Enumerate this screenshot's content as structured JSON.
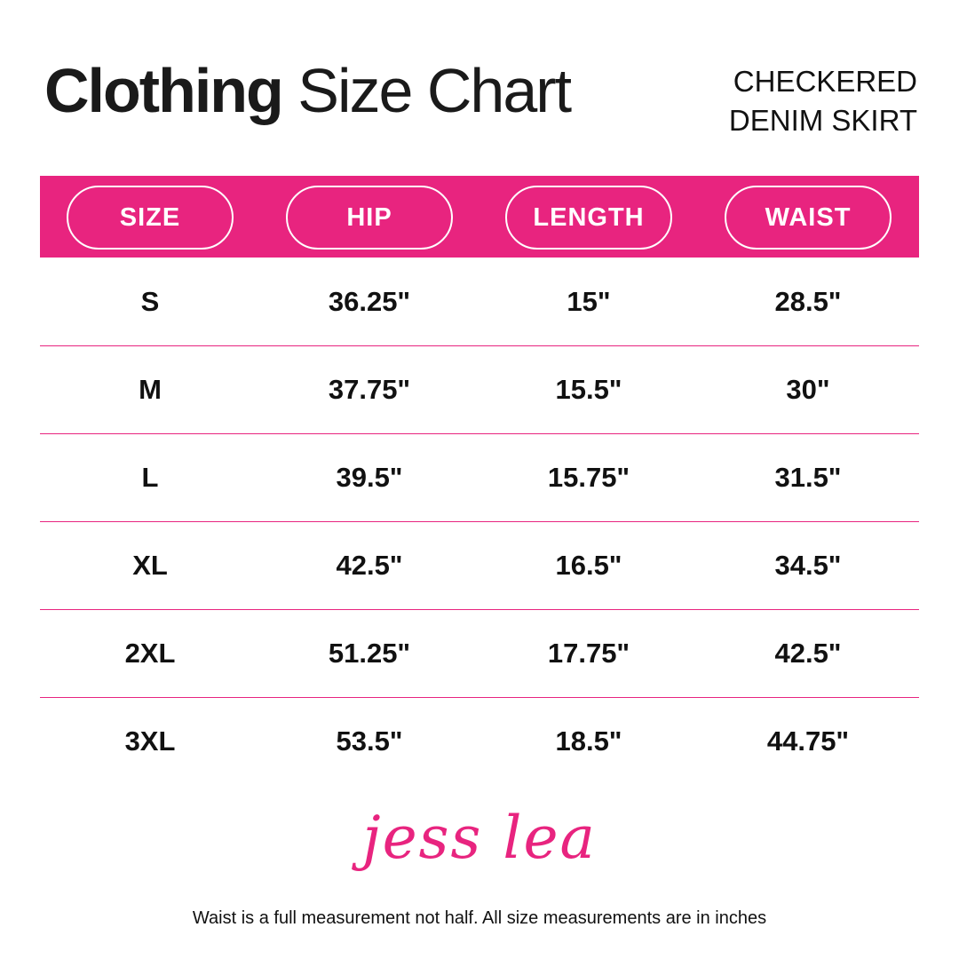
{
  "header": {
    "title_bold": "Clothing",
    "title_rest": "Size Chart",
    "subtitle": [
      "CHECKERED",
      "DENIM SKIRT"
    ]
  },
  "table": {
    "columns": [
      "SIZE",
      "HIP",
      "LENGTH",
      "WAIST"
    ],
    "rows": [
      [
        "S",
        "36.25\"",
        "15\"",
        "28.5\""
      ],
      [
        "M",
        "37.75\"",
        "15.5\"",
        "30\""
      ],
      [
        "L",
        "39.5\"",
        "15.75\"",
        "31.5\""
      ],
      [
        "XL",
        "42.5\"",
        "16.5\"",
        "34.5\""
      ],
      [
        "2XL",
        "51.25\"",
        "17.75\"",
        "42.5\""
      ],
      [
        "3XL",
        "53.5\"",
        "18.5\"",
        "44.75\""
      ]
    ]
  },
  "logo": "jess lea",
  "footnote": "Waist is a full measurement not half. All size measurements are in inches"
}
